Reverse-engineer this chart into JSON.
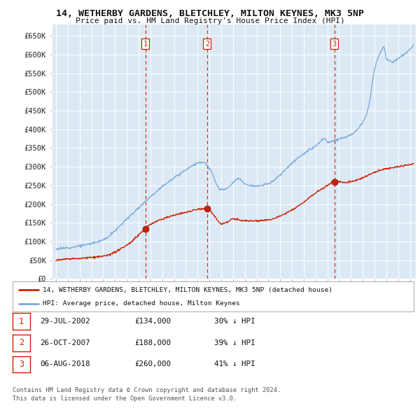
{
  "title1": "14, WETHERBY GARDENS, BLETCHLEY, MILTON KEYNES, MK3 5NP",
  "title2": "Price paid vs. HM Land Registry's House Price Index (HPI)",
  "ylabel_ticks": [
    "£0",
    "£50K",
    "£100K",
    "£150K",
    "£200K",
    "£250K",
    "£300K",
    "£350K",
    "£400K",
    "£450K",
    "£500K",
    "£550K",
    "£600K",
    "£650K"
  ],
  "ytick_vals": [
    0,
    50000,
    100000,
    150000,
    200000,
    250000,
    300000,
    350000,
    400000,
    450000,
    500000,
    550000,
    600000,
    650000
  ],
  "xlim_start": 1994.7,
  "xlim_end": 2025.5,
  "ylim_min": 0,
  "ylim_max": 680000,
  "sale_dates": [
    2002.57,
    2007.81,
    2018.59
  ],
  "sale_prices": [
    134000,
    188000,
    260000
  ],
  "sale_labels": [
    "1",
    "2",
    "3"
  ],
  "legend_line1": "14, WETHERBY GARDENS, BLETCHLEY, MILTON KEYNES, MK3 5NP (detached house)",
  "legend_line2": "HPI: Average price, detached house, Milton Keynes",
  "table_rows": [
    {
      "num": "1",
      "date": "29-JUL-2002",
      "price": "£134,000",
      "pct": "30% ↓ HPI"
    },
    {
      "num": "2",
      "date": "26-OCT-2007",
      "price": "£188,000",
      "pct": "39% ↓ HPI"
    },
    {
      "num": "3",
      "date": "06-AUG-2018",
      "price": "£260,000",
      "pct": "41% ↓ HPI"
    }
  ],
  "footer1": "Contains HM Land Registry data © Crown copyright and database right 2024.",
  "footer2": "This data is licensed under the Open Government Licence v3.0.",
  "hpi_color": "#7aaadd",
  "sale_color": "#cc2200",
  "dashed_color": "#cc2200",
  "plot_bg": "#dce9f5",
  "grid_color": "#ffffff"
}
